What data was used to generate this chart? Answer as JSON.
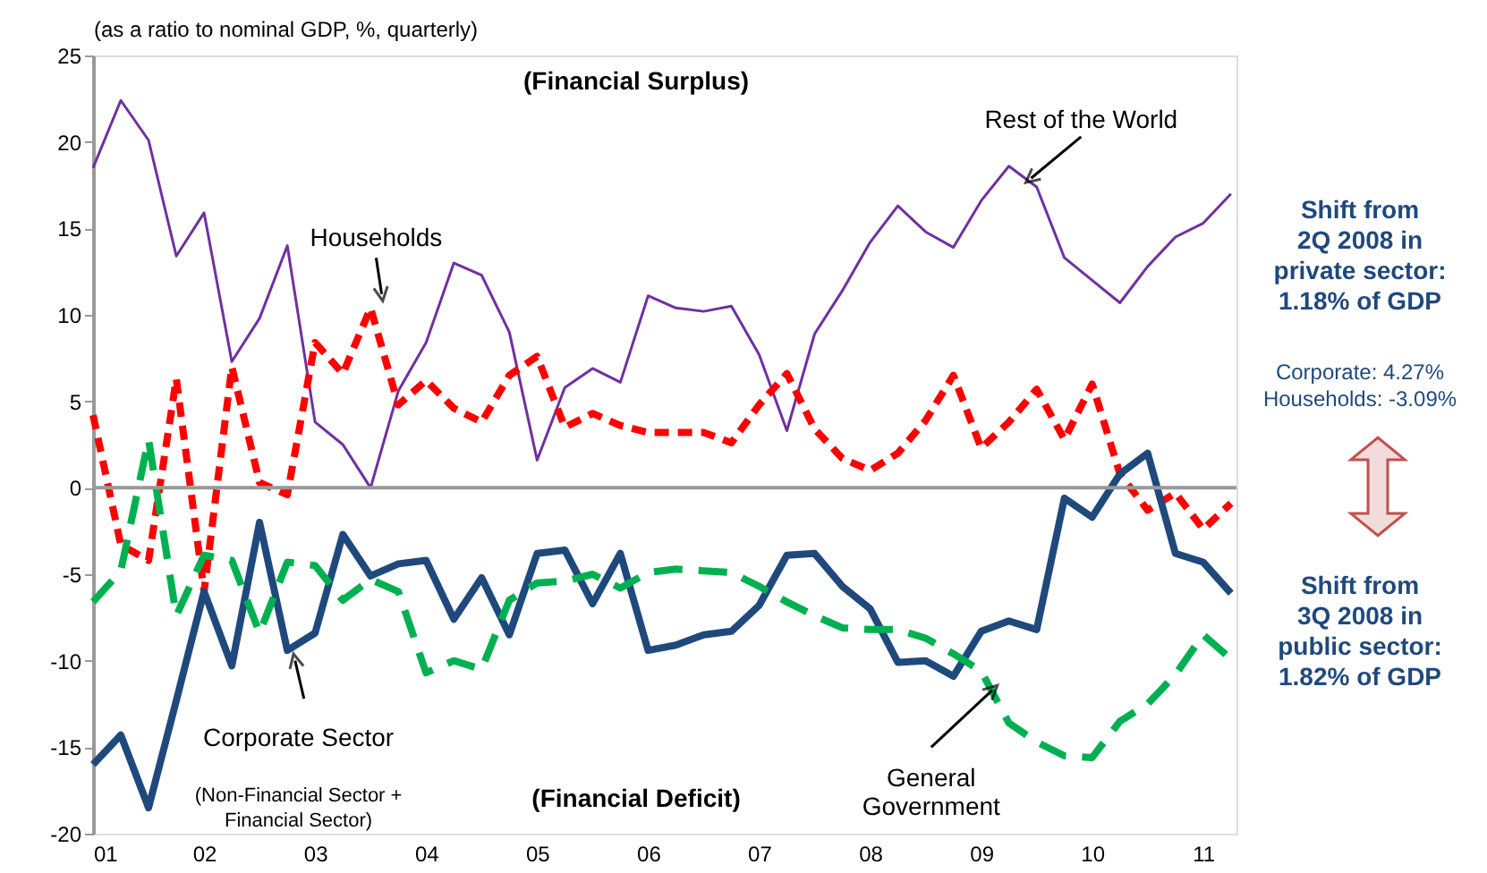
{
  "chart_data": {
    "type": "line",
    "ylabel": "(as a ratio to nominal GDP, %, quarterly)",
    "x": [
      2001,
      2001.25,
      2001.5,
      2001.75,
      2002,
      2002.25,
      2002.5,
      2002.75,
      2003,
      2003.25,
      2003.5,
      2003.75,
      2004,
      2004.25,
      2004.5,
      2004.75,
      2005,
      2005.25,
      2005.5,
      2005.75,
      2006,
      2006.25,
      2006.5,
      2006.75,
      2007,
      2007.25,
      2007.5,
      2007.75,
      2008,
      2008.25,
      2008.5,
      2008.75,
      2009,
      2009.25,
      2009.5,
      2009.75,
      2010,
      2010.25,
      2010.5,
      2010.75,
      2011,
      2011.25
    ],
    "xlim": [
      2001,
      2011.3
    ],
    "xticks": [
      {
        "value": 2001,
        "label": "01"
      },
      {
        "value": 2002,
        "label": "02"
      },
      {
        "value": 2003,
        "label": "03"
      },
      {
        "value": 2004,
        "label": "04"
      },
      {
        "value": 2005,
        "label": "05"
      },
      {
        "value": 2006,
        "label": "06"
      },
      {
        "value": 2007,
        "label": "07"
      },
      {
        "value": 2008,
        "label": "08"
      },
      {
        "value": 2009,
        "label": "09"
      },
      {
        "value": 2010,
        "label": "10"
      },
      {
        "value": 2011,
        "label": "11"
      }
    ],
    "ylim": [
      -20,
      25
    ],
    "yticks": [
      -20,
      -15,
      -10,
      -5,
      0,
      5,
      10,
      15,
      20,
      25
    ],
    "grid": false,
    "legend": false,
    "marker": "none",
    "series": [
      {
        "name": "Rest of the World",
        "color": "#7030a0",
        "line_style": "solid",
        "values": [
          18.5,
          22.4,
          20.1,
          13.4,
          15.9,
          7.3,
          9.8,
          14.0,
          3.8,
          2.5,
          0.0,
          5.6,
          8.4,
          13.0,
          12.3,
          9.0,
          1.6,
          5.8,
          6.9,
          6.1,
          11.1,
          10.4,
          10.2,
          10.5,
          7.7,
          3.3,
          8.9,
          11.4,
          14.2,
          16.3,
          14.8,
          13.9,
          16.6,
          18.6,
          17.4,
          13.3,
          12.0,
          10.7,
          12.8,
          14.5,
          15.3,
          17.0
        ]
      },
      {
        "name": "Households",
        "color": "#ff0000",
        "line_style": "dashed",
        "values": [
          4.2,
          -3.3,
          -4.2,
          6.3,
          -6.0,
          7.0,
          0.3,
          -0.4,
          8.4,
          6.6,
          10.4,
          4.8,
          6.2,
          4.6,
          3.8,
          6.5,
          7.6,
          3.5,
          4.3,
          3.6,
          3.2,
          3.2,
          3.2,
          2.6,
          4.8,
          6.6,
          3.4,
          1.7,
          1.0,
          2.0,
          3.9,
          6.5,
          2.3,
          3.8,
          5.7,
          2.8,
          6.0,
          0.8,
          -1.3,
          -0.3,
          -2.4,
          -0.9
        ]
      },
      {
        "name": "Corporate Sector",
        "color": "#1f497d",
        "line_style": "solid",
        "values": [
          -16.0,
          -14.3,
          -18.5,
          -12.3,
          -6.0,
          -10.3,
          -2.0,
          -9.4,
          -8.4,
          -2.7,
          -5.1,
          -4.4,
          -4.2,
          -7.6,
          -5.2,
          -8.5,
          -3.8,
          -3.6,
          -6.7,
          -3.8,
          -9.4,
          -9.1,
          -8.5,
          -8.3,
          -6.8,
          -3.9,
          -3.8,
          -5.7,
          -7.0,
          -10.1,
          -10.0,
          -10.9,
          -8.3,
          -7.7,
          -8.2,
          -0.6,
          -1.7,
          0.8,
          2.0,
          -3.8,
          -4.3,
          -6.1
        ]
      },
      {
        "name": "General Government",
        "color": "#00b050",
        "line_style": "dashed",
        "values": [
          -6.6,
          -4.8,
          2.8,
          -7.4,
          -3.9,
          -4.2,
          -8.4,
          -4.3,
          -4.5,
          -6.5,
          -5.3,
          -6.0,
          -10.7,
          -10.0,
          -10.5,
          -6.5,
          -5.5,
          -5.4,
          -5.0,
          -5.8,
          -4.9,
          -4.7,
          -4.8,
          -4.9,
          -5.7,
          -6.6,
          -7.4,
          -8.1,
          -8.2,
          -8.2,
          -8.7,
          -9.6,
          -10.6,
          -13.6,
          -14.7,
          -15.5,
          -15.6,
          -13.5,
          -12.5,
          -10.8,
          -8.5,
          -9.9
        ]
      }
    ],
    "ref_lines": [
      {
        "axis": "y",
        "value": 0,
        "color": "#999999"
      }
    ],
    "annotations": [
      "(Financial Surplus)",
      "(Financial Deficit)",
      "(Non-Financial Sector + Financial Sector)",
      "Shift from 2Q 2008 in private sector: 1.18% of GDP",
      "Corporate: 4.27% Households: -3.09%",
      "Shift from 3Q 2008 in public sector: 1.82% of GDP"
    ]
  }
}
